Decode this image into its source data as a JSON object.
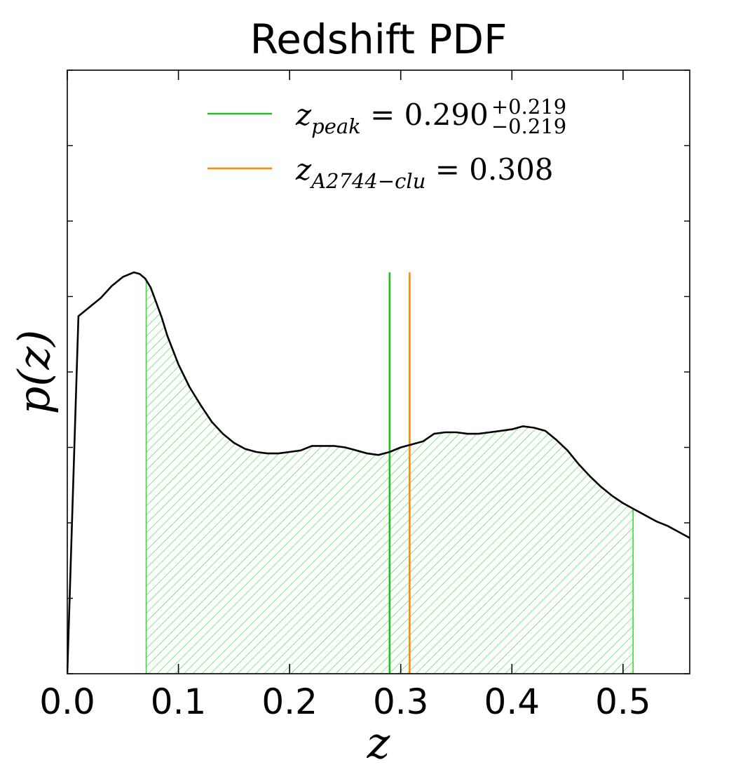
{
  "chart_data": {
    "type": "line",
    "title": "Redshift PDF",
    "xlabel": "z",
    "ylabel": "p(z)",
    "xlim": [
      0.0,
      0.56
    ],
    "ylim": [
      0,
      0.04
    ],
    "x_ticks": [
      "0.0",
      "0.1",
      "0.2",
      "0.3",
      "0.4",
      "0.5"
    ],
    "y_tick_labels_shown": false,
    "grid": false,
    "legend_position": "top-center",
    "series": [
      {
        "color": "#000000",
        "x": [
          0.0,
          0.01,
          0.02,
          0.03,
          0.04,
          0.05,
          0.06,
          0.065,
          0.07,
          0.075,
          0.08,
          0.085,
          0.09,
          0.1,
          0.11,
          0.12,
          0.13,
          0.14,
          0.15,
          0.16,
          0.17,
          0.18,
          0.19,
          0.2,
          0.21,
          0.22,
          0.23,
          0.24,
          0.25,
          0.26,
          0.27,
          0.28,
          0.29,
          0.3,
          0.31,
          0.32,
          0.33,
          0.34,
          0.35,
          0.36,
          0.37,
          0.38,
          0.39,
          0.4,
          0.41,
          0.42,
          0.43,
          0.44,
          0.45,
          0.46,
          0.47,
          0.48,
          0.49,
          0.5,
          0.51,
          0.52,
          0.53,
          0.54,
          0.55,
          0.56
        ],
        "y": [
          0.0,
          0.0237,
          0.0243,
          0.0249,
          0.0257,
          0.0263,
          0.0266,
          0.0265,
          0.0262,
          0.0256,
          0.0246,
          0.0236,
          0.0224,
          0.0205,
          0.019,
          0.0178,
          0.0167,
          0.0159,
          0.0153,
          0.0149,
          0.0147,
          0.0146,
          0.0146,
          0.0147,
          0.0148,
          0.0151,
          0.0151,
          0.0151,
          0.015,
          0.0148,
          0.0146,
          0.0145,
          0.0147,
          0.015,
          0.0152,
          0.0154,
          0.0159,
          0.016,
          0.016,
          0.0159,
          0.0159,
          0.016,
          0.0161,
          0.0162,
          0.0164,
          0.0163,
          0.0161,
          0.0155,
          0.0148,
          0.0139,
          0.0131,
          0.0124,
          0.0118,
          0.0113,
          0.0109,
          0.0105,
          0.0101,
          0.0098,
          0.0094,
          0.009
        ]
      }
    ],
    "shaded_interval": {
      "x_from": 0.071,
      "x_to": 0.509,
      "color": "#33dd33",
      "pattern": "diagonal-hatch"
    },
    "vertical_lines": [
      {
        "x": 0.29,
        "y_top": 0.0266,
        "color": "#22bb22"
      },
      {
        "x": 0.308,
        "y_top": 0.0266,
        "color": "#ff8800"
      }
    ],
    "legend": [
      {
        "color": "#22bb22",
        "symbol": "z",
        "subscript": "peak",
        "text": "= 0.290",
        "sup": "+0.219",
        "sub": "−0.219"
      },
      {
        "color": "#ff8800",
        "symbol": "z",
        "subscript": "A2744−clu",
        "text": "= 0.308"
      }
    ]
  }
}
